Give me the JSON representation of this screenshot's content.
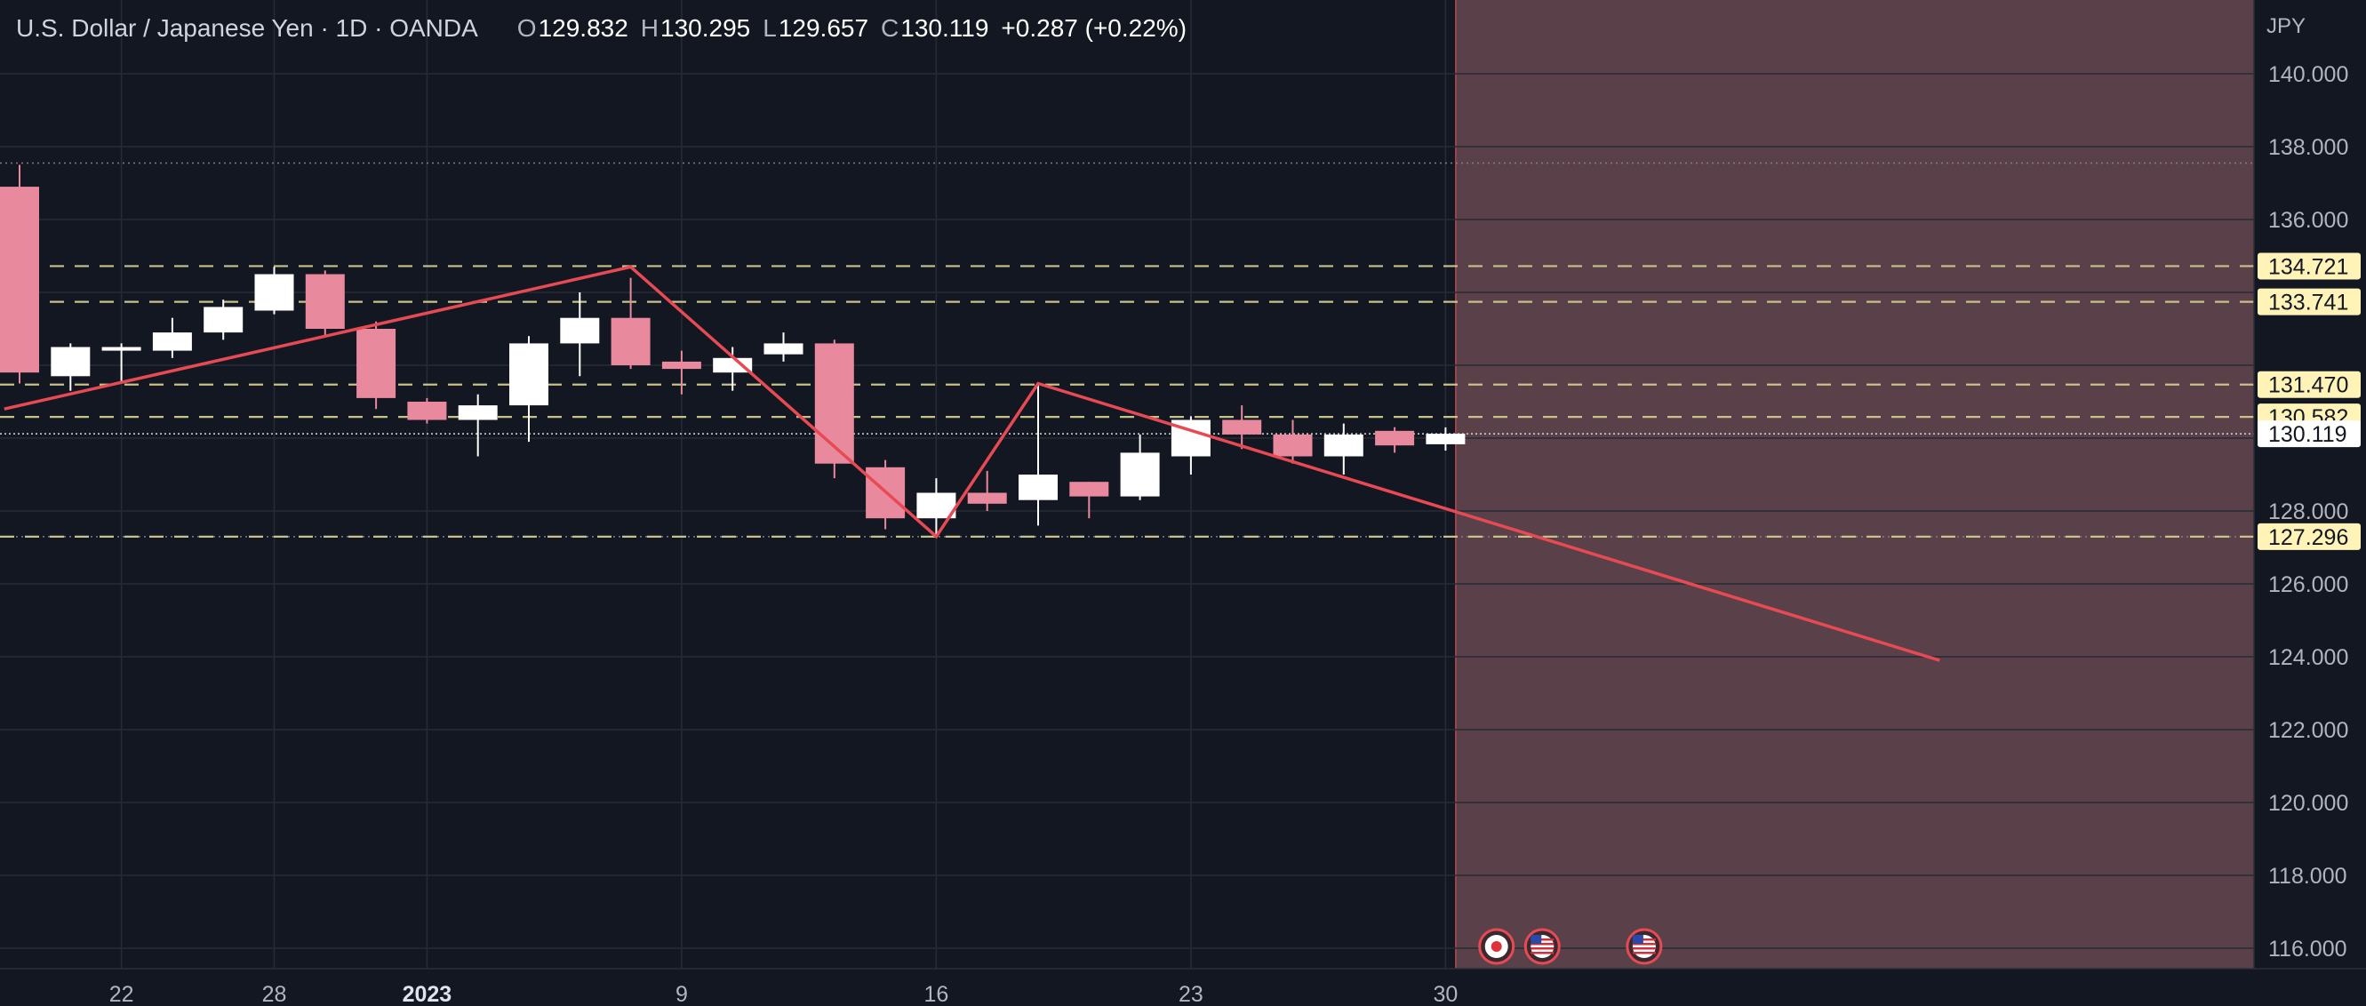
{
  "header": {
    "symbol": "U.S. Dollar / Japanese Yen · 1D · OANDA",
    "open_label": "O",
    "open": "129.832",
    "high_label": "H",
    "high": "130.295",
    "low_label": "L",
    "low": "129.657",
    "close_label": "C",
    "close": "130.119",
    "change": "+0.287 (+0.22%)"
  },
  "currency": "JPY",
  "colors": {
    "background": "#131722",
    "up_candle": "#ffffff",
    "down_candle": "#e8899e",
    "level_line": "#c8c28a",
    "trend_line": "#e84a54",
    "future_zone": "#5a4149",
    "axis_text": "#b2b5be"
  },
  "chart_data": {
    "type": "candlestick",
    "title": "U.S. Dollar / Japanese Yen · 1D · OANDA",
    "x_tick_labels": [
      {
        "label": "22",
        "index": 2
      },
      {
        "label": "28",
        "index": 5
      },
      {
        "label": "2023",
        "index": 8,
        "bold": true
      },
      {
        "label": "9",
        "index": 13
      },
      {
        "label": "16",
        "index": 18
      },
      {
        "label": "23",
        "index": 23
      },
      {
        "label": "30",
        "index": 28
      }
    ],
    "y_ticks": [
      116,
      118,
      120,
      122,
      124,
      126,
      128,
      130,
      132,
      134,
      136,
      138,
      140
    ],
    "y_tick_labels_shown": [
      "116.000",
      "118.000",
      "120.000",
      "122.000",
      "124.000",
      "126.000",
      "128.000",
      "136.000",
      "138.000",
      "140.000"
    ],
    "ylim": [
      115.3,
      142.0
    ],
    "candles": [
      {
        "o": 136.9,
        "h": 137.5,
        "l": 131.5,
        "c": 131.8
      },
      {
        "o": 131.7,
        "h": 132.6,
        "l": 131.3,
        "c": 132.5
      },
      {
        "o": 132.4,
        "h": 132.6,
        "l": 131.5,
        "c": 132.5
      },
      {
        "o": 132.4,
        "h": 133.3,
        "l": 132.2,
        "c": 132.9
      },
      {
        "o": 132.9,
        "h": 133.8,
        "l": 132.7,
        "c": 133.6
      },
      {
        "o": 133.5,
        "h": 134.7,
        "l": 133.4,
        "c": 134.5
      },
      {
        "o": 134.5,
        "h": 134.6,
        "l": 132.8,
        "c": 133.0
      },
      {
        "o": 133.0,
        "h": 133.2,
        "l": 130.8,
        "c": 131.1
      },
      {
        "o": 131.0,
        "h": 131.1,
        "l": 130.4,
        "c": 130.5
      },
      {
        "o": 130.5,
        "h": 131.2,
        "l": 129.5,
        "c": 130.9
      },
      {
        "o": 130.9,
        "h": 132.8,
        "l": 129.9,
        "c": 132.6
      },
      {
        "o": 132.6,
        "h": 134.0,
        "l": 131.7,
        "c": 133.3
      },
      {
        "o": 133.3,
        "h": 134.4,
        "l": 131.9,
        "c": 132.0
      },
      {
        "o": 132.1,
        "h": 132.4,
        "l": 131.2,
        "c": 131.9
      },
      {
        "o": 131.8,
        "h": 132.5,
        "l": 131.3,
        "c": 132.2
      },
      {
        "o": 132.3,
        "h": 132.9,
        "l": 132.1,
        "c": 132.6
      },
      {
        "o": 132.6,
        "h": 132.7,
        "l": 128.9,
        "c": 129.3
      },
      {
        "o": 129.2,
        "h": 129.4,
        "l": 127.5,
        "c": 127.8
      },
      {
        "o": 127.8,
        "h": 128.9,
        "l": 127.3,
        "c": 128.5
      },
      {
        "o": 128.5,
        "h": 129.1,
        "l": 128.0,
        "c": 128.2
      },
      {
        "o": 128.3,
        "h": 131.5,
        "l": 127.6,
        "c": 129.0
      },
      {
        "o": 128.8,
        "h": 128.8,
        "l": 127.8,
        "c": 128.4
      },
      {
        "o": 128.4,
        "h": 130.1,
        "l": 128.3,
        "c": 129.6
      },
      {
        "o": 129.5,
        "h": 130.6,
        "l": 129.0,
        "c": 130.5
      },
      {
        "o": 130.5,
        "h": 130.9,
        "l": 129.7,
        "c": 130.1
      },
      {
        "o": 130.1,
        "h": 130.5,
        "l": 129.3,
        "c": 129.5
      },
      {
        "o": 129.5,
        "h": 130.4,
        "l": 129.0,
        "c": 130.1
      },
      {
        "o": 130.2,
        "h": 130.3,
        "l": 129.6,
        "c": 129.8
      },
      {
        "o": 129.832,
        "h": 130.295,
        "l": 129.657,
        "c": 130.119
      }
    ],
    "levels": [
      {
        "value": 134.721,
        "label": "134.721",
        "highlight": true
      },
      {
        "value": 133.741,
        "label": "133.741",
        "highlight": true
      },
      {
        "value": 131.47,
        "label": "131.470",
        "highlight": true
      },
      {
        "value": 130.582,
        "label": "130.582",
        "highlight": true
      },
      {
        "value": 127.296,
        "label": "127.296",
        "highlight": true
      }
    ],
    "current_price": {
      "value": 130.119,
      "label": "130.119"
    },
    "dotted_lines": [
      137.55,
      127.296
    ],
    "trend_line": [
      {
        "i": -0.3,
        "p": 130.8
      },
      {
        "i": 12.0,
        "p": 134.7
      },
      {
        "i": 18.0,
        "p": 127.3
      },
      {
        "i": 20.0,
        "p": 131.5
      },
      {
        "i": 37.7,
        "p": 123.9
      }
    ],
    "future_zone_start_index": 28.2,
    "event_markers": [
      {
        "index": 29.0,
        "icon": "japan-flag-icon"
      },
      {
        "index": 29.9,
        "icon": "us-flag-icon"
      },
      {
        "index": 31.9,
        "icon": "us-flag-icon"
      }
    ]
  }
}
